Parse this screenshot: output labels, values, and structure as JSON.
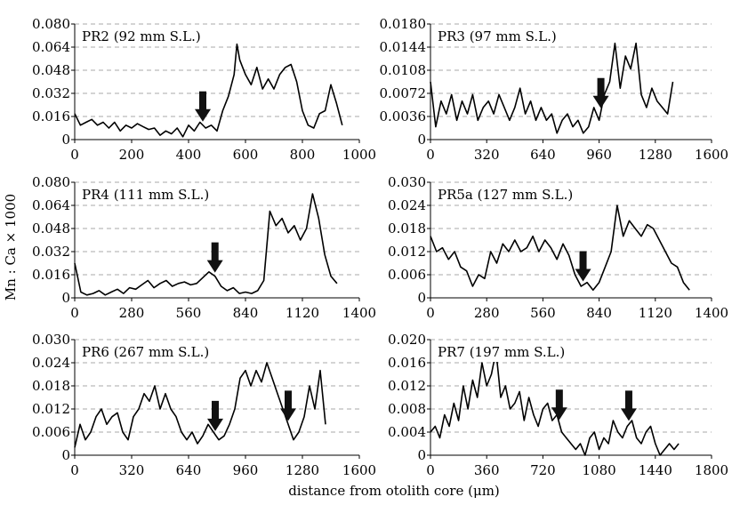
{
  "figure": {
    "ylabel": "Mn : Ca × 1000",
    "xlabel": "distance from otolith core (μm)"
  },
  "chart_data": [
    {
      "type": "line",
      "title": "PR2 (92 mm S.L.)",
      "xlim": [
        0,
        1000
      ],
      "ylim": [
        0,
        0.08
      ],
      "xticks": [
        0,
        200,
        400,
        600,
        800,
        1000
      ],
      "xtick_labels": [
        "0",
        "200",
        "400",
        "600",
        "800",
        "1000"
      ],
      "yticks": [
        0,
        0.016,
        0.032,
        0.048,
        0.064,
        0.08
      ],
      "ytick_labels": [
        "0",
        "0.016",
        "0.032",
        "0.048",
        "0.064",
        "0.080"
      ],
      "grid": "horizontal dashed",
      "arrows_x": [
        450
      ],
      "series": [
        {
          "x": [
            0,
            20,
            40,
            60,
            80,
            100,
            120,
            140,
            160,
            180,
            200,
            220,
            240,
            260,
            280,
            300,
            320,
            340,
            360,
            380,
            400,
            420,
            440,
            460,
            480,
            500,
            520,
            540,
            560,
            570,
            580,
            600,
            620,
            640,
            660,
            680,
            700,
            720,
            740,
            760,
            780,
            800,
            820,
            840,
            860,
            880,
            900,
            920,
            940
          ],
          "y": [
            0.018,
            0.01,
            0.012,
            0.014,
            0.01,
            0.012,
            0.008,
            0.012,
            0.006,
            0.01,
            0.008,
            0.011,
            0.009,
            0.007,
            0.008,
            0.003,
            0.006,
            0.004,
            0.008,
            0.002,
            0.01,
            0.006,
            0.012,
            0.008,
            0.01,
            0.006,
            0.02,
            0.03,
            0.045,
            0.066,
            0.055,
            0.045,
            0.038,
            0.05,
            0.035,
            0.042,
            0.035,
            0.045,
            0.05,
            0.052,
            0.04,
            0.02,
            0.01,
            0.008,
            0.018,
            0.02,
            0.038,
            0.025,
            0.01
          ]
        }
      ]
    },
    {
      "type": "line",
      "title": "PR3 (97 mm S.L.)",
      "xlim": [
        0,
        1600
      ],
      "ylim": [
        0,
        0.018
      ],
      "xticks": [
        0,
        320,
        640,
        960,
        1280,
        1600
      ],
      "xtick_labels": [
        "0",
        "320",
        "640",
        "960",
        "1280",
        "1600"
      ],
      "yticks": [
        0,
        0.0036,
        0.0072,
        0.0108,
        0.0144,
        0.018
      ],
      "ytick_labels": [
        "0",
        "0.0036",
        "0.0072",
        "0.0108",
        "0.0144",
        "0.0180"
      ],
      "grid": "horizontal dashed",
      "arrows_x": [
        970
      ],
      "series": [
        {
          "x": [
            0,
            30,
            60,
            90,
            120,
            150,
            180,
            210,
            240,
            270,
            300,
            330,
            360,
            390,
            420,
            450,
            480,
            510,
            540,
            570,
            600,
            630,
            660,
            690,
            720,
            750,
            780,
            810,
            840,
            870,
            900,
            930,
            960,
            990,
            1020,
            1050,
            1080,
            1110,
            1140,
            1170,
            1200,
            1230,
            1260,
            1290,
            1320,
            1350,
            1380
          ],
          "y": [
            0.009,
            0.002,
            0.006,
            0.004,
            0.007,
            0.003,
            0.006,
            0.004,
            0.007,
            0.003,
            0.005,
            0.006,
            0.004,
            0.007,
            0.005,
            0.003,
            0.005,
            0.008,
            0.004,
            0.006,
            0.003,
            0.005,
            0.003,
            0.004,
            0.001,
            0.003,
            0.004,
            0.002,
            0.003,
            0.001,
            0.002,
            0.005,
            0.003,
            0.007,
            0.009,
            0.015,
            0.008,
            0.013,
            0.011,
            0.015,
            0.007,
            0.005,
            0.008,
            0.006,
            0.005,
            0.004,
            0.009
          ]
        }
      ]
    },
    {
      "type": "line",
      "title": "PR4 (111 mm S.L.)",
      "xlim": [
        0,
        1400
      ],
      "ylim": [
        0,
        0.08
      ],
      "xticks": [
        0,
        280,
        560,
        840,
        1120,
        1400
      ],
      "xtick_labels": [
        "0",
        "280",
        "560",
        "840",
        "1120",
        "1400"
      ],
      "yticks": [
        0,
        0.016,
        0.032,
        0.048,
        0.064,
        0.08
      ],
      "ytick_labels": [
        "0",
        "0.016",
        "0.032",
        "0.048",
        "0.064",
        "0.080"
      ],
      "grid": "horizontal dashed",
      "arrows_x": [
        690
      ],
      "series": [
        {
          "x": [
            0,
            30,
            60,
            90,
            120,
            150,
            180,
            210,
            240,
            270,
            300,
            330,
            360,
            390,
            420,
            450,
            480,
            510,
            540,
            570,
            600,
            630,
            660,
            690,
            720,
            750,
            780,
            810,
            840,
            870,
            900,
            930,
            960,
            990,
            1020,
            1050,
            1080,
            1110,
            1140,
            1170,
            1200,
            1230,
            1260,
            1290
          ],
          "y": [
            0.024,
            0.004,
            0.002,
            0.003,
            0.005,
            0.002,
            0.004,
            0.006,
            0.003,
            0.007,
            0.006,
            0.009,
            0.012,
            0.007,
            0.01,
            0.012,
            0.008,
            0.01,
            0.011,
            0.009,
            0.01,
            0.014,
            0.018,
            0.015,
            0.008,
            0.005,
            0.007,
            0.003,
            0.004,
            0.003,
            0.005,
            0.012,
            0.06,
            0.05,
            0.055,
            0.045,
            0.05,
            0.04,
            0.048,
            0.072,
            0.055,
            0.03,
            0.015,
            0.01
          ]
        }
      ]
    },
    {
      "type": "line",
      "title": "PR5a (127 mm S.L.)",
      "xlim": [
        0,
        1400
      ],
      "ylim": [
        0,
        0.03
      ],
      "xticks": [
        0,
        280,
        560,
        840,
        1120,
        1400
      ],
      "xtick_labels": [
        "0",
        "280",
        "560",
        "840",
        "1120",
        "1400"
      ],
      "yticks": [
        0,
        0.006,
        0.012,
        0.018,
        0.024,
        0.03
      ],
      "ytick_labels": [
        "0",
        "0.006",
        "0.012",
        "0.018",
        "0.024",
        "0.030"
      ],
      "grid": "horizontal dashed",
      "arrows_x": [
        760
      ],
      "series": [
        {
          "x": [
            0,
            30,
            60,
            90,
            120,
            150,
            180,
            210,
            240,
            270,
            300,
            330,
            360,
            390,
            420,
            450,
            480,
            510,
            540,
            570,
            600,
            630,
            660,
            690,
            720,
            750,
            780,
            810,
            840,
            870,
            900,
            930,
            960,
            990,
            1020,
            1050,
            1080,
            1110,
            1140,
            1170,
            1200,
            1230,
            1260,
            1290
          ],
          "y": [
            0.016,
            0.012,
            0.013,
            0.01,
            0.012,
            0.008,
            0.007,
            0.003,
            0.006,
            0.005,
            0.012,
            0.009,
            0.014,
            0.012,
            0.015,
            0.012,
            0.013,
            0.016,
            0.012,
            0.015,
            0.013,
            0.01,
            0.014,
            0.011,
            0.006,
            0.003,
            0.004,
            0.002,
            0.004,
            0.008,
            0.012,
            0.024,
            0.016,
            0.02,
            0.018,
            0.016,
            0.019,
            0.018,
            0.015,
            0.012,
            0.009,
            0.008,
            0.004,
            0.002
          ]
        }
      ]
    },
    {
      "type": "line",
      "title": "PR6 (267 mm S.L.)",
      "xlim": [
        0,
        1600
      ],
      "ylim": [
        0,
        0.03
      ],
      "xticks": [
        0,
        320,
        640,
        960,
        1280,
        1600
      ],
      "xtick_labels": [
        "0",
        "320",
        "640",
        "960",
        "1280",
        "1600"
      ],
      "yticks": [
        0,
        0.006,
        0.012,
        0.018,
        0.024,
        0.03
      ],
      "ytick_labels": [
        "0",
        "0.006",
        "0.012",
        "0.018",
        "0.024",
        "0.030"
      ],
      "grid": "horizontal dashed",
      "arrows_x": [
        790,
        1200
      ],
      "series": [
        {
          "x": [
            0,
            30,
            60,
            90,
            120,
            150,
            180,
            210,
            240,
            270,
            300,
            330,
            360,
            390,
            420,
            450,
            480,
            510,
            540,
            570,
            600,
            630,
            660,
            690,
            720,
            750,
            780,
            810,
            840,
            870,
            900,
            930,
            960,
            990,
            1020,
            1050,
            1080,
            1110,
            1140,
            1170,
            1200,
            1230,
            1260,
            1290,
            1320,
            1350,
            1380,
            1410
          ],
          "y": [
            0.002,
            0.008,
            0.004,
            0.006,
            0.01,
            0.012,
            0.008,
            0.01,
            0.011,
            0.006,
            0.004,
            0.01,
            0.012,
            0.016,
            0.014,
            0.018,
            0.012,
            0.016,
            0.012,
            0.01,
            0.006,
            0.004,
            0.006,
            0.003,
            0.005,
            0.008,
            0.006,
            0.004,
            0.005,
            0.008,
            0.012,
            0.02,
            0.022,
            0.018,
            0.022,
            0.019,
            0.024,
            0.02,
            0.016,
            0.012,
            0.008,
            0.004,
            0.006,
            0.01,
            0.018,
            0.012,
            0.022,
            0.008
          ]
        }
      ]
    },
    {
      "type": "line",
      "title": "PR7 (197 mm S.L.)",
      "xlim": [
        0,
        1800
      ],
      "ylim": [
        0,
        0.02
      ],
      "xticks": [
        0,
        360,
        720,
        1080,
        1440,
        1800
      ],
      "xtick_labels": [
        "0",
        "360",
        "720",
        "1080",
        "1440",
        "1800"
      ],
      "yticks": [
        0,
        0.004,
        0.008,
        0.012,
        0.016,
        0.02
      ],
      "ytick_labels": [
        "0",
        "0.004",
        "0.008",
        "0.012",
        "0.016",
        "0.020"
      ],
      "grid": "horizontal dashed",
      "arrows_x": [
        825,
        1270
      ],
      "series": [
        {
          "x": [
            0,
            30,
            60,
            90,
            120,
            150,
            180,
            210,
            240,
            270,
            300,
            330,
            360,
            390,
            420,
            450,
            480,
            510,
            540,
            570,
            600,
            630,
            660,
            690,
            720,
            750,
            780,
            810,
            840,
            870,
            900,
            930,
            960,
            990,
            1020,
            1050,
            1080,
            1110,
            1140,
            1170,
            1200,
            1230,
            1260,
            1290,
            1320,
            1350,
            1380,
            1410,
            1440,
            1470,
            1500,
            1530,
            1560,
            1590
          ],
          "y": [
            0.004,
            0.005,
            0.003,
            0.007,
            0.005,
            0.009,
            0.006,
            0.012,
            0.008,
            0.013,
            0.01,
            0.016,
            0.012,
            0.014,
            0.018,
            0.01,
            0.012,
            0.008,
            0.009,
            0.011,
            0.006,
            0.01,
            0.007,
            0.005,
            0.008,
            0.009,
            0.006,
            0.007,
            0.004,
            0.003,
            0.002,
            0.001,
            0.002,
            0,
            0.003,
            0.004,
            0.001,
            0.003,
            0.002,
            0.006,
            0.004,
            0.003,
            0.005,
            0.006,
            0.003,
            0.002,
            0.004,
            0.005,
            0.002,
            0,
            0.001,
            0.002,
            0.001,
            0.002
          ]
        }
      ]
    }
  ]
}
